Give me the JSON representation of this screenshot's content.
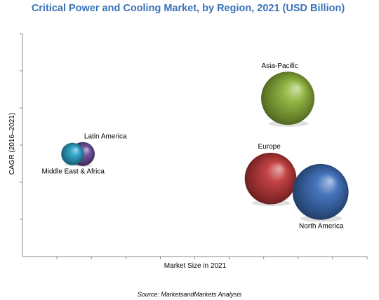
{
  "chart_data": {
    "type": "bubble",
    "title": "Critical Power and Cooling Market, by Region, 2021 (USD Billion)",
    "xlabel": "Market Size in 2021",
    "ylabel": "CAGR (2016–2021)",
    "source": "Source: MarketsandMarkets Analysis",
    "grid": false,
    "xlim": [
      0,
      10
    ],
    "ylim": [
      0,
      10
    ],
    "x_ticks": 10,
    "y_ticks": 6,
    "points": [
      {
        "name": "Asia-Pacific",
        "x": 7.7,
        "y": 7.1,
        "size": 1.0,
        "color": "#8db33a",
        "label_position": "top"
      },
      {
        "name": "Latin America",
        "x": 1.75,
        "y": 4.6,
        "size": 0.45,
        "color": "#6a4d97",
        "label_position": "top-right"
      },
      {
        "name": "Middle East & Africa",
        "x": 1.45,
        "y": 4.6,
        "size": 0.42,
        "color": "#2ba2c7",
        "label_position": "bottom"
      },
      {
        "name": "Europe",
        "x": 7.2,
        "y": 3.5,
        "size": 0.97,
        "color": "#c0393b",
        "label_position": "top-left"
      },
      {
        "name": "North America",
        "x": 8.65,
        "y": 2.9,
        "size": 1.05,
        "color": "#3c6eb8",
        "label_position": "bottom"
      }
    ],
    "colors": {
      "title": "#3a72b8",
      "axis": "#8a8a8a"
    }
  }
}
